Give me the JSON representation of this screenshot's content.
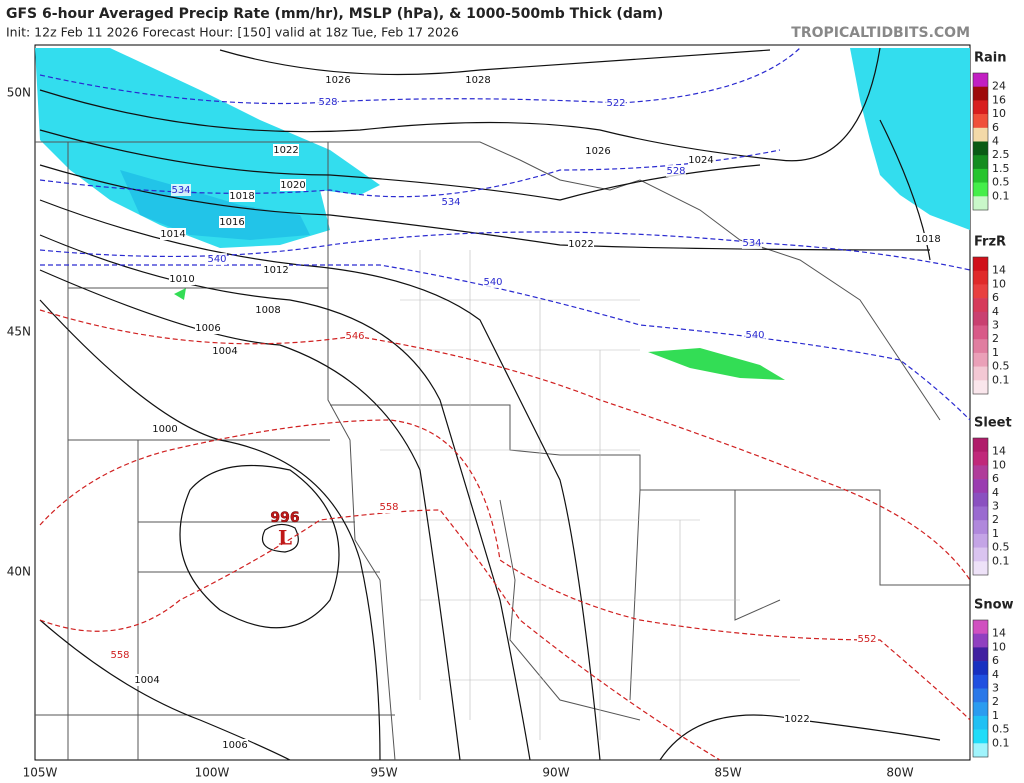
{
  "header": {
    "title": "GFS 6-hour Averaged Precip Rate (mm/hr), MSLP (hPa), & 1000-500mb Thick (dam)",
    "subtitle": "Init: 12z Feb 11 2026   Forecast Hour: [150]   valid at 18z Tue, Feb 17 2026",
    "site": "TROPICALTIDBITS.COM"
  },
  "map": {
    "latitude_labels": [
      "50N",
      "45N",
      "40N"
    ],
    "longitude_labels": [
      "105W",
      "100W",
      "95W",
      "90W",
      "85W",
      "80W"
    ],
    "isobar_labels": [
      "1026",
      "1028",
      "1022",
      "1020",
      "1018",
      "1016",
      "1014",
      "1010",
      "1012",
      "1008",
      "1006",
      "1004",
      "1000",
      "1026",
      "1024",
      "1022",
      "1018",
      "1004",
      "1006",
      "1022"
    ],
    "low_center": {
      "pressure": "996",
      "symbol": "L"
    },
    "cold_thickness_labels": [
      "528",
      "522",
      "534",
      "534",
      "528",
      "540",
      "540",
      "534",
      "540"
    ],
    "warm_thickness_labels": [
      "546",
      "558",
      "558",
      "552"
    ]
  },
  "legend": [
    {
      "title": "Rain",
      "levels": [
        "24",
        "16",
        "10",
        "6",
        "4",
        "2.5",
        "1.5",
        "0.5",
        "0.1"
      ],
      "colors": [
        "#c21fc2",
        "#9e0a0a",
        "#d81e1e",
        "#f0503a",
        "#f3d9a8",
        "#0a5a14",
        "#158c1f",
        "#27c42d",
        "#45ee4a",
        "#c9f7c9"
      ]
    },
    {
      "title": "FrzR",
      "levels": [
        "14",
        "10",
        "6",
        "4",
        "3",
        "2",
        "1",
        "0.5",
        "0.1"
      ],
      "colors": [
        "#d0101a",
        "#e02a2a",
        "#e84040",
        "#d63a5a",
        "#c94070",
        "#d85a88",
        "#e07ea0",
        "#eaa0b8",
        "#f3c8d4",
        "#fae6ec"
      ]
    },
    {
      "title": "Sleet",
      "levels": [
        "14",
        "10",
        "6",
        "4",
        "3",
        "2",
        "1",
        "0.5",
        "0.1"
      ],
      "colors": [
        "#b01c6a",
        "#c0287a",
        "#b03c9a",
        "#9a3cb0",
        "#8a50c0",
        "#9a6ad0",
        "#b088dc",
        "#c4a4e6",
        "#dac4f0",
        "#eee2f8"
      ]
    },
    {
      "title": "Snow",
      "levels": [
        "14",
        "10",
        "6",
        "4",
        "3",
        "2",
        "1",
        "0.5",
        "0.1"
      ],
      "colors": [
        "#d050c0",
        "#9040c0",
        "#4020a0",
        "#1830c0",
        "#2050e0",
        "#2a78e8",
        "#2a9cf0",
        "#20c0f4",
        "#20dcf8",
        "#a0f4fc"
      ]
    }
  ]
}
